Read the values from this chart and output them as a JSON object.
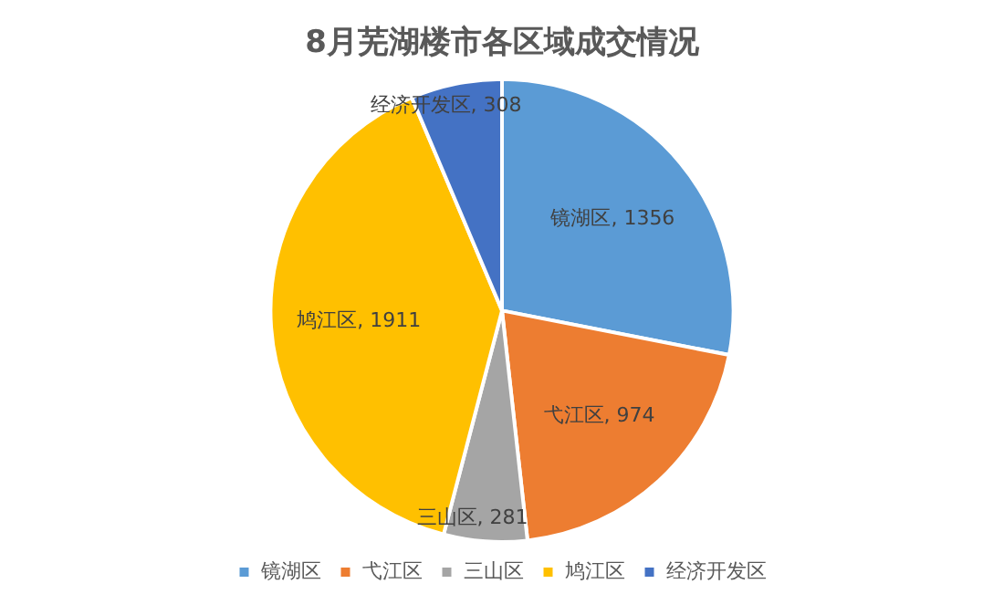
{
  "chart_data": {
    "type": "pie",
    "title": "8月芜湖楼市各区域成交情况",
    "categories": [
      "镜湖区",
      "弋江区",
      "三山区",
      "鸠江区",
      "经济开发区"
    ],
    "values": [
      1356,
      974,
      281,
      1911,
      308
    ],
    "value_labels": [
      "镜湖区, 1356",
      "弋江区, 974",
      "三山区, 281",
      "鸠江区, 1911",
      "经济开发区, 308"
    ],
    "colors": [
      "#5b9bd5",
      "#ed7d31",
      "#a5a5a5",
      "#ffc000",
      "#4472c4"
    ],
    "legend": "bottom"
  }
}
